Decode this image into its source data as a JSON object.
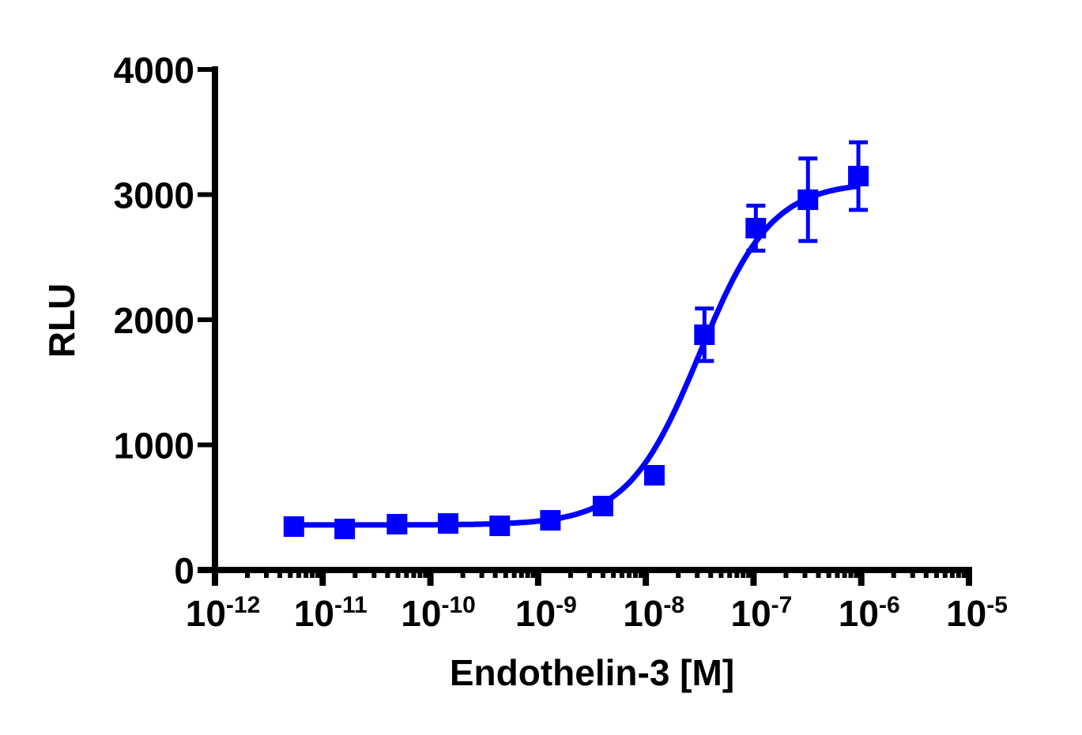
{
  "chart_data": {
    "type": "scatter",
    "title": "",
    "xlabel": "Endothelin-3 [M]",
    "ylabel": "RLU",
    "xscale": "log",
    "xlim": [
      1e-12,
      1e-05
    ],
    "ylim": [
      0,
      4000
    ],
    "grid": false,
    "legend": null,
    "x_tick_labels": [
      {
        "base": "10",
        "exp": "-12",
        "value": 1e-12
      },
      {
        "base": "10",
        "exp": "-11",
        "value": 1e-11
      },
      {
        "base": "10",
        "exp": "-10",
        "value": 1e-10
      },
      {
        "base": "10",
        "exp": "-9",
        "value": 1e-09
      },
      {
        "base": "10",
        "exp": "-8",
        "value": 1e-08
      },
      {
        "base": "10",
        "exp": "-7",
        "value": 1e-07
      },
      {
        "base": "10",
        "exp": "-6",
        "value": 1e-06
      },
      {
        "base": "10",
        "exp": "-5",
        "value": 1e-05
      }
    ],
    "y_tick_labels": [
      "0",
      "1000",
      "2000",
      "3000",
      "4000"
    ],
    "y_ticks": [
      0,
      1000,
      2000,
      3000,
      4000
    ],
    "series": [
      {
        "name": "Endothelin-3",
        "color": "#0000ff",
        "marker": "square",
        "x": [
          5.4e-12,
          1.6e-11,
          4.9e-11,
          1.46e-10,
          4.4e-10,
          1.3e-09,
          4e-09,
          1.2e-08,
          3.5e-08,
          1.05e-07,
          3.2e-07,
          9.4e-07
        ],
        "y": [
          347,
          328,
          366,
          372,
          353,
          397,
          511,
          757,
          1880,
          2732,
          2959,
          3148
        ],
        "error": [
          0,
          0,
          0,
          0,
          0,
          0,
          0,
          0,
          210,
          180,
          330,
          270
        ]
      }
    ],
    "fit": {
      "type": "four-parameter logistic",
      "color": "#0000ff",
      "bottom": 360,
      "top": 3100,
      "logEC50": -7.5,
      "hill_slope": 1.3
    }
  }
}
